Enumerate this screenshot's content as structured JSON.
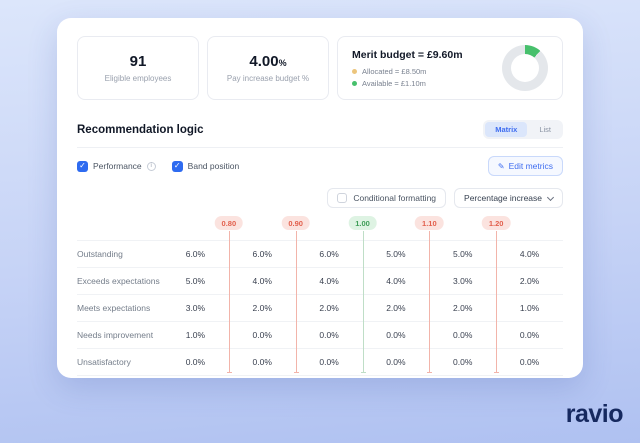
{
  "stats": {
    "eligible": {
      "value": "91",
      "label": "Eligible employees"
    },
    "budget_pct": {
      "value": "4.00",
      "suffix": "%",
      "label": "Pay increase budget %"
    },
    "merit": {
      "title": "Merit budget = £9.60m",
      "legend": [
        {
          "name": "allocated",
          "label": "Allocated = £8.50m",
          "color": "#ecc57c"
        },
        {
          "name": "available",
          "label": "Available = £1.10m",
          "color": "#47c06c"
        }
      ],
      "donut": {
        "available_pct": 11.5,
        "available_color": "#47c06c",
        "allocated_color": "#e4e7eb"
      }
    }
  },
  "section": {
    "title": "Recommendation logic",
    "view_toggle": [
      {
        "label": "Matrix",
        "active": true
      },
      {
        "label": "List",
        "active": false
      }
    ],
    "metrics": [
      {
        "label": "Performance",
        "checked": true,
        "info": true
      },
      {
        "label": "Band position",
        "checked": true,
        "info": false
      }
    ],
    "edit_button": "Edit metrics",
    "edit_icon": "pencil-icon",
    "conditional_formatting": {
      "label": "Conditional formatting",
      "checked": false
    },
    "value_dropdown": "Percentage increase"
  },
  "matrix": {
    "thresholds": [
      {
        "value": "0.80",
        "tone": "red"
      },
      {
        "value": "0.90",
        "tone": "red"
      },
      {
        "value": "1.00",
        "tone": "green"
      },
      {
        "value": "1.10",
        "tone": "red"
      },
      {
        "value": "1.20",
        "tone": "red"
      }
    ],
    "rows": [
      {
        "label": "Outstanding",
        "values": [
          "6.0%",
          "6.0%",
          "6.0%",
          "5.0%",
          "5.0%",
          "4.0%"
        ]
      },
      {
        "label": "Exceeds expectations",
        "values": [
          "5.0%",
          "4.0%",
          "4.0%",
          "4.0%",
          "3.0%",
          "2.0%"
        ]
      },
      {
        "label": "Meets expectations",
        "values": [
          "3.0%",
          "2.0%",
          "2.0%",
          "2.0%",
          "2.0%",
          "1.0%"
        ]
      },
      {
        "label": "Needs improvement",
        "values": [
          "1.0%",
          "0.0%",
          "0.0%",
          "0.0%",
          "0.0%",
          "0.0%"
        ]
      },
      {
        "label": "Unsatisfactory",
        "values": [
          "0.0%",
          "0.0%",
          "0.0%",
          "0.0%",
          "0.0%",
          "0.0%"
        ]
      }
    ]
  },
  "colors": {
    "accent_blue": "#3f6df0",
    "pill_red_bg": "#fbe3df",
    "pill_red_text": "#e2604d",
    "pill_green_bg": "#def3e3",
    "pill_green_text": "#3f9e58",
    "line_red": "#f2b4aa",
    "line_green": "#bfdec7",
    "navy": "#16295f"
  },
  "logo": "ravio"
}
